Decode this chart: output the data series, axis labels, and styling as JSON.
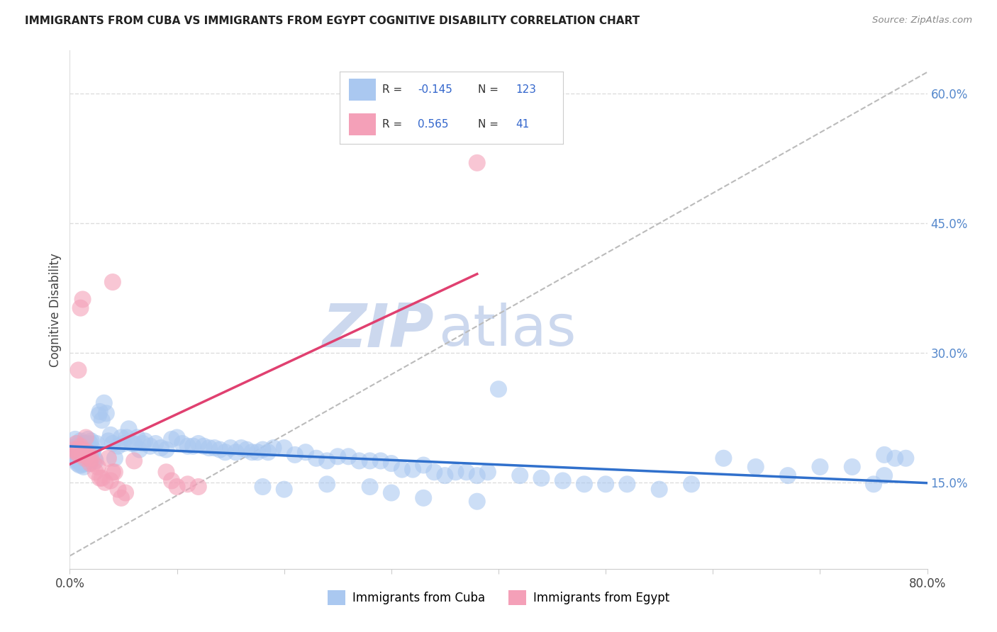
{
  "title": "IMMIGRANTS FROM CUBA VS IMMIGRANTS FROM EGYPT COGNITIVE DISABILITY CORRELATION CHART",
  "source": "Source: ZipAtlas.com",
  "ylabel": "Cognitive Disability",
  "xlim": [
    0.0,
    0.8
  ],
  "ylim": [
    0.05,
    0.65
  ],
  "xtick_vals": [
    0.0,
    0.1,
    0.2,
    0.3,
    0.4,
    0.5,
    0.6,
    0.7,
    0.8
  ],
  "xticklabels": [
    "0.0%",
    "",
    "",
    "",
    "",
    "",
    "",
    "",
    "80.0%"
  ],
  "yticks_right": [
    0.15,
    0.3,
    0.45,
    0.6
  ],
  "ytick_labels_right": [
    "15.0%",
    "30.0%",
    "45.0%",
    "60.0%"
  ],
  "cuba_color": "#aac8f0",
  "egypt_color": "#f4a0b8",
  "cuba_line_color": "#3070cc",
  "egypt_line_color": "#e04070",
  "ref_line_color": "#bbbbbb",
  "legend_color": "#3366cc",
  "watermark": "ZIPatlas",
  "watermark_color": "#ccd8ee",
  "cuba_label": "Immigrants from Cuba",
  "egypt_label": "Immigrants from Egypt",
  "cuba_R_text": "R = -0.145",
  "cuba_N_text": "N = 123",
  "egypt_R_text": "R =  0.565",
  "egypt_N_text": "N =  41",
  "cuba_x": [
    0.003,
    0.004,
    0.005,
    0.005,
    0.006,
    0.006,
    0.007,
    0.007,
    0.008,
    0.008,
    0.009,
    0.009,
    0.01,
    0.01,
    0.011,
    0.011,
    0.012,
    0.012,
    0.013,
    0.013,
    0.014,
    0.014,
    0.015,
    0.016,
    0.017,
    0.018,
    0.019,
    0.02,
    0.021,
    0.022,
    0.023,
    0.024,
    0.025,
    0.027,
    0.028,
    0.03,
    0.032,
    0.034,
    0.036,
    0.038,
    0.04,
    0.042,
    0.045,
    0.048,
    0.05,
    0.053,
    0.055,
    0.058,
    0.06,
    0.063,
    0.065,
    0.068,
    0.07,
    0.075,
    0.08,
    0.085,
    0.09,
    0.095,
    0.1,
    0.105,
    0.11,
    0.115,
    0.12,
    0.125,
    0.13,
    0.135,
    0.14,
    0.145,
    0.15,
    0.155,
    0.16,
    0.165,
    0.17,
    0.175,
    0.18,
    0.185,
    0.19,
    0.2,
    0.21,
    0.22,
    0.23,
    0.24,
    0.25,
    0.26,
    0.27,
    0.28,
    0.29,
    0.3,
    0.31,
    0.32,
    0.33,
    0.34,
    0.35,
    0.36,
    0.37,
    0.38,
    0.39,
    0.4,
    0.42,
    0.44,
    0.46,
    0.48,
    0.5,
    0.52,
    0.55,
    0.58,
    0.61,
    0.64,
    0.67,
    0.7,
    0.73,
    0.76,
    0.78,
    0.76,
    0.75,
    0.77,
    0.18,
    0.2,
    0.24,
    0.28,
    0.3,
    0.33,
    0.38
  ],
  "cuba_y": [
    0.19,
    0.185,
    0.2,
    0.178,
    0.192,
    0.175,
    0.195,
    0.172,
    0.188,
    0.175,
    0.192,
    0.17,
    0.198,
    0.178,
    0.185,
    0.17,
    0.195,
    0.172,
    0.188,
    0.168,
    0.192,
    0.172,
    0.195,
    0.188,
    0.2,
    0.172,
    0.195,
    0.198,
    0.185,
    0.188,
    0.178,
    0.175,
    0.195,
    0.228,
    0.232,
    0.222,
    0.242,
    0.23,
    0.198,
    0.205,
    0.195,
    0.178,
    0.192,
    0.202,
    0.195,
    0.202,
    0.212,
    0.195,
    0.195,
    0.202,
    0.188,
    0.195,
    0.198,
    0.192,
    0.195,
    0.19,
    0.188,
    0.2,
    0.202,
    0.195,
    0.192,
    0.192,
    0.195,
    0.192,
    0.19,
    0.19,
    0.188,
    0.185,
    0.19,
    0.185,
    0.19,
    0.188,
    0.185,
    0.185,
    0.188,
    0.185,
    0.19,
    0.19,
    0.182,
    0.185,
    0.178,
    0.175,
    0.18,
    0.18,
    0.175,
    0.175,
    0.175,
    0.172,
    0.165,
    0.165,
    0.17,
    0.162,
    0.158,
    0.162,
    0.162,
    0.158,
    0.162,
    0.258,
    0.158,
    0.155,
    0.152,
    0.148,
    0.148,
    0.148,
    0.142,
    0.148,
    0.178,
    0.168,
    0.158,
    0.168,
    0.168,
    0.182,
    0.178,
    0.158,
    0.148,
    0.178,
    0.145,
    0.142,
    0.148,
    0.145,
    0.138,
    0.132,
    0.128
  ],
  "egypt_x": [
    0.004,
    0.005,
    0.006,
    0.007,
    0.008,
    0.009,
    0.01,
    0.011,
    0.012,
    0.013,
    0.014,
    0.015,
    0.016,
    0.017,
    0.018,
    0.019,
    0.02,
    0.022,
    0.024,
    0.026,
    0.028,
    0.03,
    0.033,
    0.036,
    0.038,
    0.04,
    0.042,
    0.045,
    0.048,
    0.052,
    0.008,
    0.01,
    0.012,
    0.04,
    0.06,
    0.09,
    0.095,
    0.1,
    0.11,
    0.12,
    0.38
  ],
  "egypt_y": [
    0.188,
    0.185,
    0.195,
    0.185,
    0.188,
    0.182,
    0.192,
    0.188,
    0.182,
    0.185,
    0.178,
    0.202,
    0.182,
    0.185,
    0.178,
    0.172,
    0.178,
    0.172,
    0.162,
    0.168,
    0.155,
    0.155,
    0.15,
    0.178,
    0.152,
    0.162,
    0.162,
    0.142,
    0.132,
    0.138,
    0.28,
    0.352,
    0.362,
    0.382,
    0.175,
    0.162,
    0.152,
    0.145,
    0.148,
    0.145,
    0.52
  ],
  "ref_line_x": [
    0.0,
    0.8
  ],
  "ref_line_y": [
    0.065,
    0.625
  ]
}
